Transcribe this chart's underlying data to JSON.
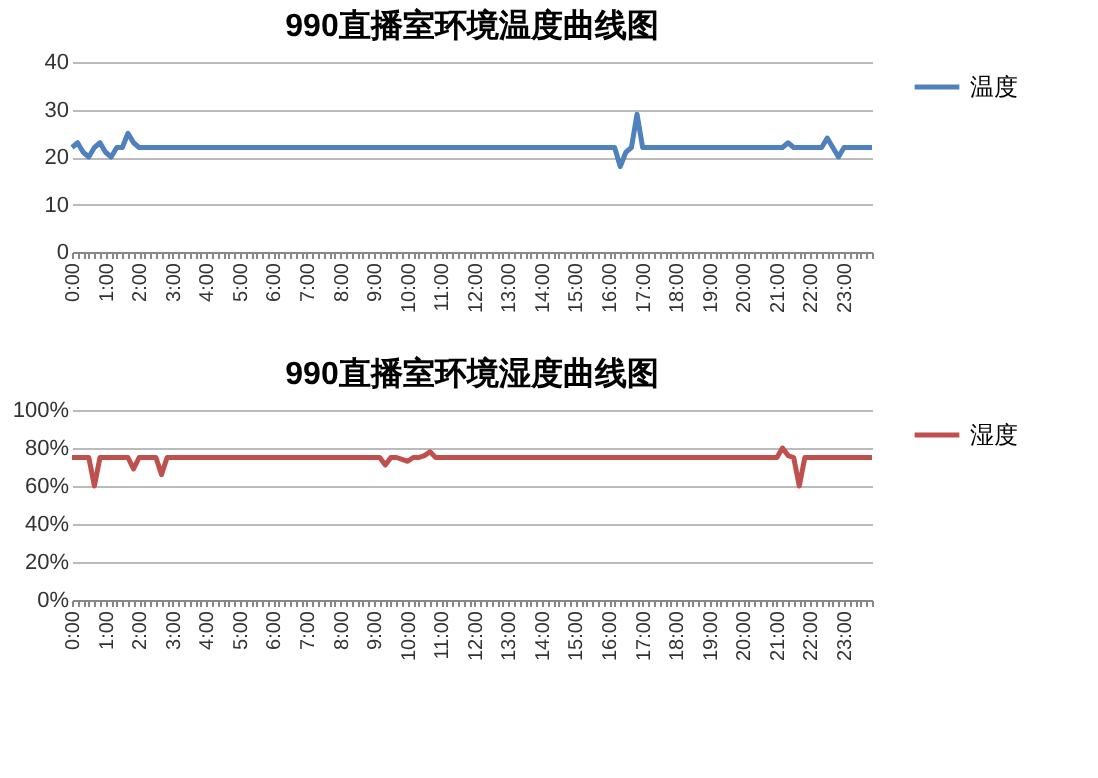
{
  "chart_data": [
    {
      "type": "line",
      "title": "990直播室环境温度曲线图",
      "categories": [
        "0:00",
        null,
        null,
        null,
        null,
        null,
        "1:00",
        null,
        null,
        null,
        null,
        null,
        "2:00",
        null,
        null,
        null,
        null,
        null,
        "3:00",
        null,
        null,
        null,
        null,
        null,
        "4:00",
        null,
        null,
        null,
        null,
        null,
        "5:00",
        null,
        null,
        null,
        null,
        null,
        "6:00",
        null,
        null,
        null,
        null,
        null,
        "7:00",
        null,
        null,
        null,
        null,
        null,
        "8:00",
        null,
        null,
        null,
        null,
        null,
        "9:00",
        null,
        null,
        null,
        null,
        null,
        "10:00",
        null,
        null,
        null,
        null,
        null,
        "11:00",
        null,
        null,
        null,
        null,
        null,
        "12:00",
        null,
        null,
        null,
        null,
        null,
        "13:00",
        null,
        null,
        null,
        null,
        null,
        "14:00",
        null,
        null,
        null,
        null,
        null,
        "15:00",
        null,
        null,
        null,
        null,
        null,
        "16:00",
        null,
        null,
        null,
        null,
        null,
        "17:00",
        null,
        null,
        null,
        null,
        null,
        "18:00",
        null,
        null,
        null,
        null,
        null,
        "19:00",
        null,
        null,
        null,
        null,
        null,
        "20:00",
        null,
        null,
        null,
        null,
        null,
        "21:00",
        null,
        null,
        null,
        null,
        null,
        "22:00",
        null,
        null,
        null,
        null,
        null,
        "23:00",
        null,
        null,
        null,
        null,
        null
      ],
      "series": [
        {
          "name": "温度",
          "color": "#4f81bd",
          "values": [
            22,
            23,
            21,
            20,
            22,
            23,
            21,
            20,
            22,
            22,
            25,
            23,
            22,
            22,
            22,
            22,
            22,
            22,
            22,
            22,
            22,
            22,
            22,
            22,
            22,
            22,
            22,
            22,
            22,
            22,
            22,
            22,
            22,
            22,
            22,
            22,
            22,
            22,
            22,
            22,
            22,
            22,
            22,
            22,
            22,
            22,
            22,
            22,
            22,
            22,
            22,
            22,
            22,
            22,
            22,
            22,
            22,
            22,
            22,
            22,
            22,
            22,
            22,
            22,
            22,
            22,
            22,
            22,
            22,
            22,
            22,
            22,
            22,
            22,
            22,
            22,
            22,
            22,
            22,
            22,
            22,
            22,
            22,
            22,
            22,
            22,
            22,
            22,
            22,
            22,
            22,
            22,
            22,
            22,
            22,
            22,
            22,
            22,
            18,
            21,
            22,
            29,
            22,
            22,
            22,
            22,
            22,
            22,
            22,
            22,
            22,
            22,
            22,
            22,
            22,
            22,
            22,
            22,
            22,
            22,
            22,
            22,
            22,
            22,
            22,
            22,
            22,
            22,
            23,
            22,
            22,
            22,
            22,
            22,
            22,
            24,
            22,
            20,
            22,
            22,
            22,
            22,
            22,
            22
          ]
        }
      ],
      "ylim": [
        0,
        40
      ],
      "yticks": [
        0,
        10,
        20,
        30,
        40
      ],
      "grid": "y",
      "legend": "right",
      "marker": "none",
      "line_style": "solid"
    },
    {
      "type": "line",
      "title": "990直播室环境湿度曲线图",
      "categories": [
        "0:00",
        null,
        null,
        null,
        null,
        null,
        "1:00",
        null,
        null,
        null,
        null,
        null,
        "2:00",
        null,
        null,
        null,
        null,
        null,
        "3:00",
        null,
        null,
        null,
        null,
        null,
        "4:00",
        null,
        null,
        null,
        null,
        null,
        "5:00",
        null,
        null,
        null,
        null,
        null,
        "6:00",
        null,
        null,
        null,
        null,
        null,
        "7:00",
        null,
        null,
        null,
        null,
        null,
        "8:00",
        null,
        null,
        null,
        null,
        null,
        "9:00",
        null,
        null,
        null,
        null,
        null,
        "10:00",
        null,
        null,
        null,
        null,
        null,
        "11:00",
        null,
        null,
        null,
        null,
        null,
        "12:00",
        null,
        null,
        null,
        null,
        null,
        "13:00",
        null,
        null,
        null,
        null,
        null,
        "14:00",
        null,
        null,
        null,
        null,
        null,
        "15:00",
        null,
        null,
        null,
        null,
        null,
        "16:00",
        null,
        null,
        null,
        null,
        null,
        "17:00",
        null,
        null,
        null,
        null,
        null,
        "18:00",
        null,
        null,
        null,
        null,
        null,
        "19:00",
        null,
        null,
        null,
        null,
        null,
        "20:00",
        null,
        null,
        null,
        null,
        null,
        "21:00",
        null,
        null,
        null,
        null,
        null,
        "22:00",
        null,
        null,
        null,
        null,
        null,
        "23:00",
        null,
        null,
        null,
        null,
        null
      ],
      "series": [
        {
          "name": "湿度",
          "color": "#c0504d",
          "values": [
            75,
            75,
            75,
            75,
            60,
            75,
            75,
            75,
            75,
            75,
            75,
            69,
            75,
            75,
            75,
            75,
            66,
            75,
            75,
            75,
            75,
            75,
            75,
            75,
            75,
            75,
            75,
            75,
            75,
            75,
            75,
            75,
            75,
            75,
            75,
            75,
            75,
            75,
            75,
            75,
            75,
            75,
            75,
            75,
            75,
            75,
            75,
            75,
            75,
            75,
            75,
            75,
            75,
            75,
            75,
            75,
            71,
            75,
            75,
            74,
            73,
            75,
            75,
            76,
            78,
            75,
            75,
            75,
            75,
            75,
            75,
            75,
            75,
            75,
            75,
            75,
            75,
            75,
            75,
            75,
            75,
            75,
            75,
            75,
            75,
            75,
            75,
            75,
            75,
            75,
            75,
            75,
            75,
            75,
            75,
            75,
            75,
            75,
            75,
            75,
            75,
            75,
            75,
            75,
            75,
            75,
            75,
            75,
            75,
            75,
            75,
            75,
            75,
            75,
            75,
            75,
            75,
            75,
            75,
            75,
            75,
            75,
            75,
            75,
            75,
            75,
            75,
            80,
            76,
            75,
            60,
            75,
            75,
            75,
            75,
            75,
            75,
            75,
            75,
            75,
            75,
            75,
            75,
            75
          ]
        }
      ],
      "ylim": [
        0,
        100
      ],
      "yticks": [
        {
          "value": 0,
          "label": "0%"
        },
        {
          "value": 20,
          "label": "20%"
        },
        {
          "value": 40,
          "label": "40%"
        },
        {
          "value": 60,
          "label": "60%"
        },
        {
          "value": 80,
          "label": "80%"
        },
        {
          "value": 100,
          "label": "100%"
        }
      ],
      "grid": "y",
      "legend": "right",
      "marker": "none",
      "line_style": "solid"
    }
  ]
}
